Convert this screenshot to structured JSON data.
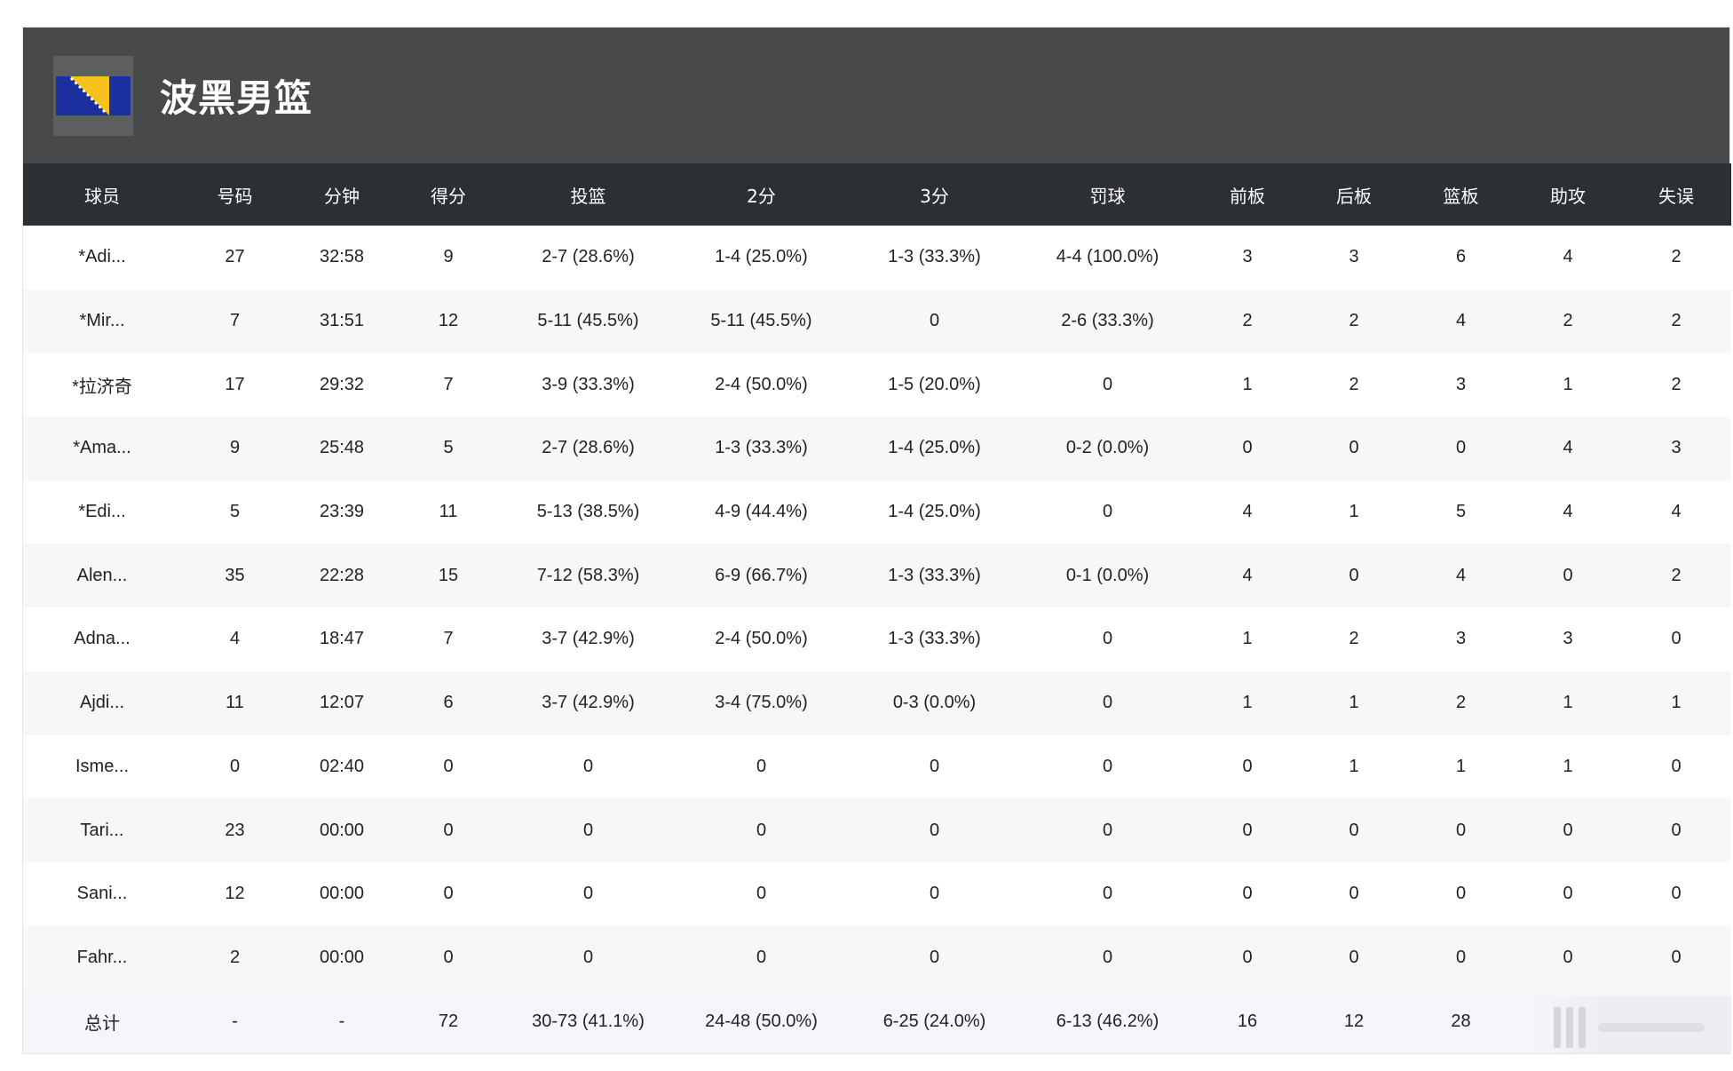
{
  "team": {
    "name": "波黑男篮",
    "flag_icon": "bosnia-herzegovina-flag-icon",
    "header_color": "#48494b"
  },
  "table": {
    "headers": [
      "球员",
      "号码",
      "分钟",
      "得分",
      "投篮",
      "2分",
      "3分",
      "罚球",
      "前板",
      "后板",
      "篮板",
      "助攻",
      "失误"
    ],
    "rows": [
      [
        "*Adi...",
        "27",
        "32:58",
        "9",
        "2-7 (28.6%)",
        "1-4 (25.0%)",
        "1-3 (33.3%)",
        "4-4 (100.0%)",
        "3",
        "3",
        "6",
        "4",
        "2"
      ],
      [
        "*Mir...",
        "7",
        "31:51",
        "12",
        "5-11 (45.5%)",
        "5-11 (45.5%)",
        "0",
        "2-6 (33.3%)",
        "2",
        "2",
        "4",
        "2",
        "2"
      ],
      [
        "*拉济奇",
        "17",
        "29:32",
        "7",
        "3-9 (33.3%)",
        "2-4 (50.0%)",
        "1-5 (20.0%)",
        "0",
        "1",
        "2",
        "3",
        "1",
        "2"
      ],
      [
        "*Ama...",
        "9",
        "25:48",
        "5",
        "2-7 (28.6%)",
        "1-3 (33.3%)",
        "1-4 (25.0%)",
        "0-2 (0.0%)",
        "0",
        "0",
        "0",
        "4",
        "3"
      ],
      [
        "*Edi...",
        "5",
        "23:39",
        "11",
        "5-13 (38.5%)",
        "4-9 (44.4%)",
        "1-4 (25.0%)",
        "0",
        "4",
        "1",
        "5",
        "4",
        "4"
      ],
      [
        "Alen...",
        "35",
        "22:28",
        "15",
        "7-12 (58.3%)",
        "6-9 (66.7%)",
        "1-3 (33.3%)",
        "0-1 (0.0%)",
        "4",
        "0",
        "4",
        "0",
        "2"
      ],
      [
        "Adna...",
        "4",
        "18:47",
        "7",
        "3-7 (42.9%)",
        "2-4 (50.0%)",
        "1-3 (33.3%)",
        "0",
        "1",
        "2",
        "3",
        "3",
        "0"
      ],
      [
        "Ajdi...",
        "11",
        "12:07",
        "6",
        "3-7 (42.9%)",
        "3-4 (75.0%)",
        "0-3 (0.0%)",
        "0",
        "1",
        "1",
        "2",
        "1",
        "1"
      ],
      [
        "Isme...",
        "0",
        "02:40",
        "0",
        "0",
        "0",
        "0",
        "0",
        "0",
        "1",
        "1",
        "1",
        "0"
      ],
      [
        "Tari...",
        "23",
        "00:00",
        "0",
        "0",
        "0",
        "0",
        "0",
        "0",
        "0",
        "0",
        "0",
        "0"
      ],
      [
        "Sani...",
        "12",
        "00:00",
        "0",
        "0",
        "0",
        "0",
        "0",
        "0",
        "0",
        "0",
        "0",
        "0"
      ],
      [
        "Fahr...",
        "2",
        "00:00",
        "0",
        "0",
        "0",
        "0",
        "0",
        "0",
        "0",
        "0",
        "0",
        "0"
      ]
    ],
    "total": [
      "总计",
      "-",
      "-",
      "72",
      "30-73 (41.1%)",
      "24-48 (50.0%)",
      "6-25 (24.0%)",
      "6-13 (46.2%)",
      "16",
      "12",
      "28",
      "",
      ""
    ]
  }
}
